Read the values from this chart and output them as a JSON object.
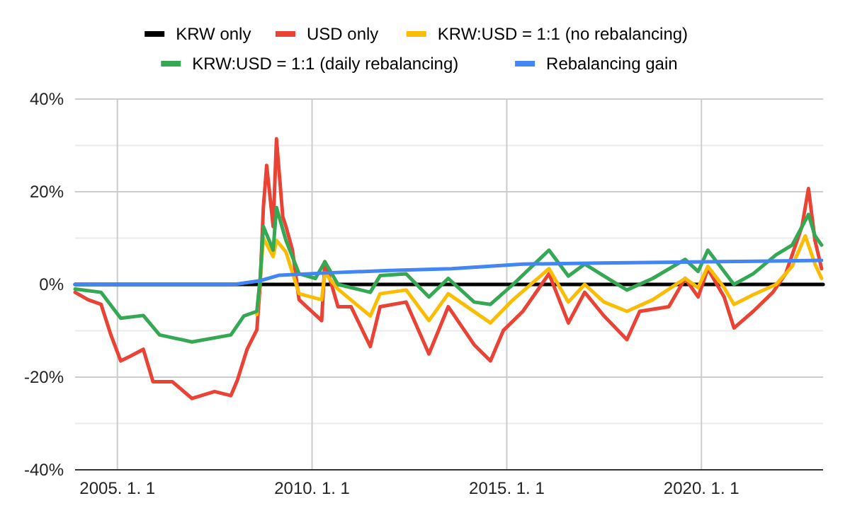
{
  "chart_data": {
    "type": "line",
    "legend": "top",
    "grid": true,
    "xlim": [
      "2003-12-01",
      "2023-02-15"
    ],
    "ylim": [
      -40,
      40
    ],
    "xticks": [
      {
        "value": "2005-01-01",
        "label": "2005. 1. 1"
      },
      {
        "value": "2010-01-01",
        "label": "2010. 1. 1"
      },
      {
        "value": "2015-01-01",
        "label": "2015. 1. 1"
      },
      {
        "value": "2020-01-01",
        "label": "2020. 1. 1"
      }
    ],
    "yticks": [
      {
        "value": -40,
        "label": "-40%"
      },
      {
        "value": -30,
        "label": null
      },
      {
        "value": -20,
        "label": "-20%"
      },
      {
        "value": -10,
        "label": null
      },
      {
        "value": 0,
        "label": "0%"
      },
      {
        "value": 10,
        "label": null
      },
      {
        "value": 20,
        "label": "20%"
      },
      {
        "value": 30,
        "label": null
      },
      {
        "value": 40,
        "label": "40%"
      }
    ],
    "series": [
      {
        "name": "KRW only",
        "color": "#000000",
        "x": [
          "2003-12-01",
          "2023-02-15"
        ],
        "values": [
          0,
          0
        ]
      },
      {
        "name": "USD only",
        "color": "#ea4335",
        "x": [
          "2003-12",
          "2004-04",
          "2004-08",
          "2004-11",
          "2005-02",
          "2005-05",
          "2005-09",
          "2005-12",
          "2006-06",
          "2006-12",
          "2007-07",
          "2007-12",
          "2008-02",
          "2008-05",
          "2008-08",
          "2008-09",
          "2008-10",
          "2008-11",
          "2009-01",
          "2009-02",
          "2009-04",
          "2009-05",
          "2009-07",
          "2009-09",
          "2010-04",
          "2010-05",
          "2010-09",
          "2011-01",
          "2011-07",
          "2011-10",
          "2012-06",
          "2013-01",
          "2013-07",
          "2014-03",
          "2014-08",
          "2014-12",
          "2015-06",
          "2016-02",
          "2016-08",
          "2017-01",
          "2017-07",
          "2018-02",
          "2018-06",
          "2019-03",
          "2019-08",
          "2019-12",
          "2020-03",
          "2020-08",
          "2020-11",
          "2021-05",
          "2021-11",
          "2022-03",
          "2022-08",
          "2022-10",
          "2022-12",
          "2023-02"
        ],
        "values": [
          -1.7,
          -3.3,
          -4.3,
          -10.9,
          -16.5,
          -15.5,
          -14,
          -21,
          -21,
          -24.6,
          -23.1,
          -24,
          -20.6,
          -14,
          -9.8,
          0,
          16.6,
          25.7,
          12.5,
          31.4,
          14.6,
          12.5,
          7.4,
          -3.3,
          -7.8,
          4.9,
          -4.8,
          -4.8,
          -13.4,
          -4.8,
          -3.8,
          -15,
          -4.8,
          -13,
          -16.5,
          -9.9,
          -5.8,
          2.3,
          -8.3,
          -1.7,
          -6.8,
          -11.9,
          -5.8,
          -4.8,
          1.3,
          -2.7,
          3.4,
          -2.7,
          -9.4,
          -5.8,
          -1.7,
          2.3,
          12.5,
          20.7,
          9.5,
          3.4
        ]
      },
      {
        "name": "KRW:USD = 1:1 (no rebalancing)",
        "color": "#fbbc04",
        "x": [
          "2008-08",
          "2008-09",
          "2008-10",
          "2009-01",
          "2009-02",
          "2009-05",
          "2009-09",
          "2010-04",
          "2010-05",
          "2010-09",
          "2011-07",
          "2011-10",
          "2012-06",
          "2013-01",
          "2013-07",
          "2014-08",
          "2015-03",
          "2016-02",
          "2016-08",
          "2017-01",
          "2017-07",
          "2018-02",
          "2018-10",
          "2019-08",
          "2019-12",
          "2020-03",
          "2020-08",
          "2020-11",
          "2021-05",
          "2021-12",
          "2022-05",
          "2022-09",
          "2022-12",
          "2023-02"
        ],
        "values": [
          -6.5,
          1.3,
          10,
          6,
          9.5,
          7,
          -2,
          -3.3,
          2.5,
          -1,
          -6.8,
          -2,
          -1.2,
          -7.8,
          -2,
          -8.3,
          -3.3,
          3.4,
          -3.8,
          0,
          -3.8,
          -5.8,
          -3.3,
          1.3,
          -0.7,
          3.9,
          -0.7,
          -4.3,
          -2.2,
          0,
          3.9,
          10.5,
          4.4,
          1.3
        ]
      },
      {
        "name": "KRW:USD = 1:1 (daily rebalancing)",
        "color": "#34a853",
        "x": [
          "2003-12",
          "2004-08",
          "2005-02",
          "2005-09",
          "2006-02",
          "2006-12",
          "2007-12",
          "2008-04",
          "2008-08",
          "2008-09",
          "2008-10",
          "2009-01",
          "2009-02",
          "2009-05",
          "2009-09",
          "2010-02",
          "2010-05",
          "2010-09",
          "2011-07",
          "2011-10",
          "2012-06",
          "2013-01",
          "2013-07",
          "2014-03",
          "2014-08",
          "2015-03",
          "2016-02",
          "2016-08",
          "2017-01",
          "2017-07",
          "2018-02",
          "2018-10",
          "2019-08",
          "2019-12",
          "2020-03",
          "2020-08",
          "2020-11",
          "2021-05",
          "2021-12",
          "2022-05",
          "2022-10",
          "2022-12",
          "2023-02"
        ],
        "values": [
          -1,
          -1.7,
          -7.3,
          -6.7,
          -10.9,
          -12.4,
          -10.9,
          -6.8,
          -5.8,
          1.3,
          12.5,
          7.4,
          16.6,
          9.5,
          2.3,
          1.3,
          4.9,
          0,
          -1.7,
          1.9,
          2.3,
          -2.7,
          1.3,
          -3.8,
          -4.3,
          0,
          7.4,
          1.8,
          4.4,
          1.8,
          -1.2,
          1.3,
          5.4,
          2.8,
          7.4,
          2.8,
          0,
          2.3,
          6.4,
          8.5,
          15.1,
          10.5,
          8.5
        ]
      },
      {
        "name": "Rebalancing gain",
        "color": "#4285f4",
        "x": [
          "2003-12",
          "2006-01",
          "2008-01",
          "2008-09",
          "2009-03",
          "2010-06",
          "2012-01",
          "2013-08",
          "2015-06",
          "2017-06",
          "2019-06",
          "2021-06",
          "2023-02"
        ],
        "values": [
          0,
          0,
          0,
          0.8,
          2,
          2.5,
          3,
          3.4,
          4.4,
          4.6,
          4.8,
          5,
          5.2
        ]
      }
    ]
  }
}
